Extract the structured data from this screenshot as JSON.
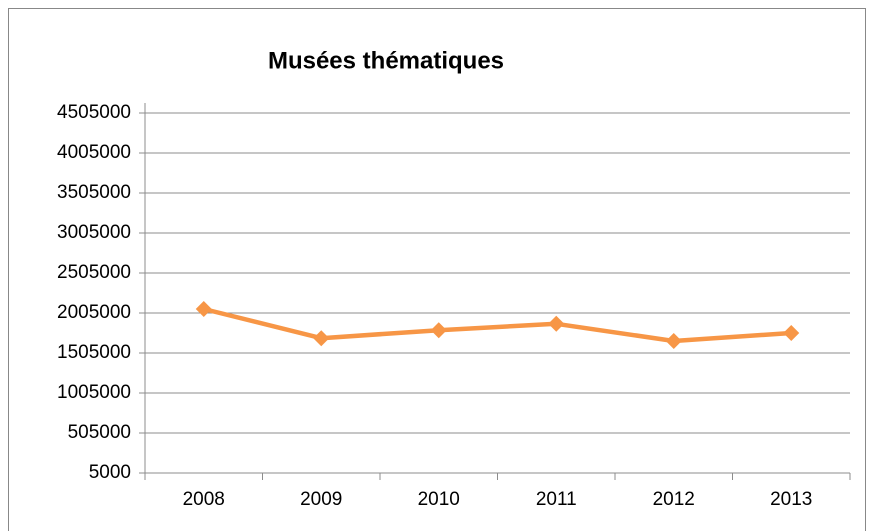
{
  "chart_data": {
    "type": "line",
    "title": "Musées thématiques",
    "categories": [
      "2008",
      "2009",
      "2010",
      "2011",
      "2012",
      "2013"
    ],
    "series": [
      {
        "name": "Musées thématiques",
        "color": "#f79646",
        "values": [
          2055000,
          1690000,
          1790000,
          1870000,
          1655000,
          1755000
        ]
      }
    ],
    "ylim": [
      5000,
      4505000
    ],
    "yticks": [
      5000,
      505000,
      1005000,
      1505000,
      2005000,
      2505000,
      3005000,
      3505000,
      4005000,
      4505000
    ],
    "grid": true
  }
}
